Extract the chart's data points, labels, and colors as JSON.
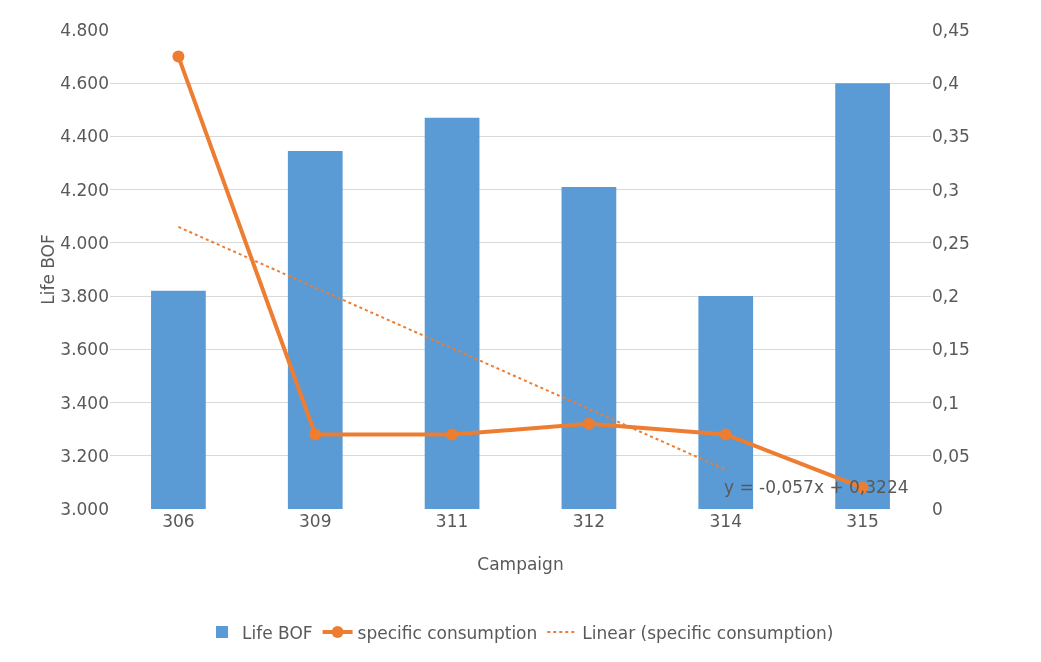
{
  "chart_data": {
    "type": "bar",
    "xlabel": "Campaign",
    "ylabel": "Life BOF",
    "categories": [
      "306",
      "309",
      "311",
      "312",
      "314",
      "315"
    ],
    "series": [
      {
        "name": "Life BOF",
        "color": "#5b9bd5",
        "values": [
          3820,
          4345,
          4470,
          4210,
          3800,
          4600
        ]
      },
      {
        "name": "specific consumption",
        "type": "line",
        "axis": "y2",
        "color": "#ed7d31",
        "marker": "circle",
        "line_style": "solid",
        "values": [
          0.425,
          0.07,
          0.07,
          0.08,
          0.07,
          0.02
        ]
      },
      {
        "name": "Linear (specific consumption)",
        "type": "line",
        "axis": "y2",
        "color": "#ed7d31",
        "marker": "none",
        "line_style": "dotted",
        "values": [
          0.265,
          0.208,
          0.151,
          0.094,
          0.037,
          null
        ]
      }
    ],
    "ylim": [
      3000,
      4800
    ],
    "yticks": [
      {
        "value": 3000,
        "label": "3.000"
      },
      {
        "value": 3200,
        "label": "3.200"
      },
      {
        "value": 3400,
        "label": "3.400"
      },
      {
        "value": 3600,
        "label": "3.600"
      },
      {
        "value": 3800,
        "label": "3.800"
      },
      {
        "value": 4000,
        "label": "4.000"
      },
      {
        "value": 4200,
        "label": "4.200"
      },
      {
        "value": 4400,
        "label": "4.400"
      },
      {
        "value": 4600,
        "label": "4.600"
      },
      {
        "value": 4800,
        "label": "4.800"
      }
    ],
    "y2lim": [
      0,
      0.45
    ],
    "y2ticks": [
      0,
      {
        "value": 0.05,
        "label": "0,05"
      },
      {
        "value": 0.1,
        "label": "0,1"
      },
      {
        "value": 0.15,
        "label": "0,15"
      },
      {
        "value": 0.2,
        "label": "0,2"
      },
      {
        "value": 0.25,
        "label": "0,25"
      },
      {
        "value": 0.3,
        "label": "0,3"
      },
      {
        "value": 0.35,
        "label": "0,35"
      },
      {
        "value": 0.4,
        "label": "0,4"
      },
      {
        "value": 0.45,
        "label": "0,45"
      }
    ],
    "annotations": [
      "y = -0,057x + 0,3224"
    ],
    "grid": "y",
    "legend": "bottom"
  }
}
